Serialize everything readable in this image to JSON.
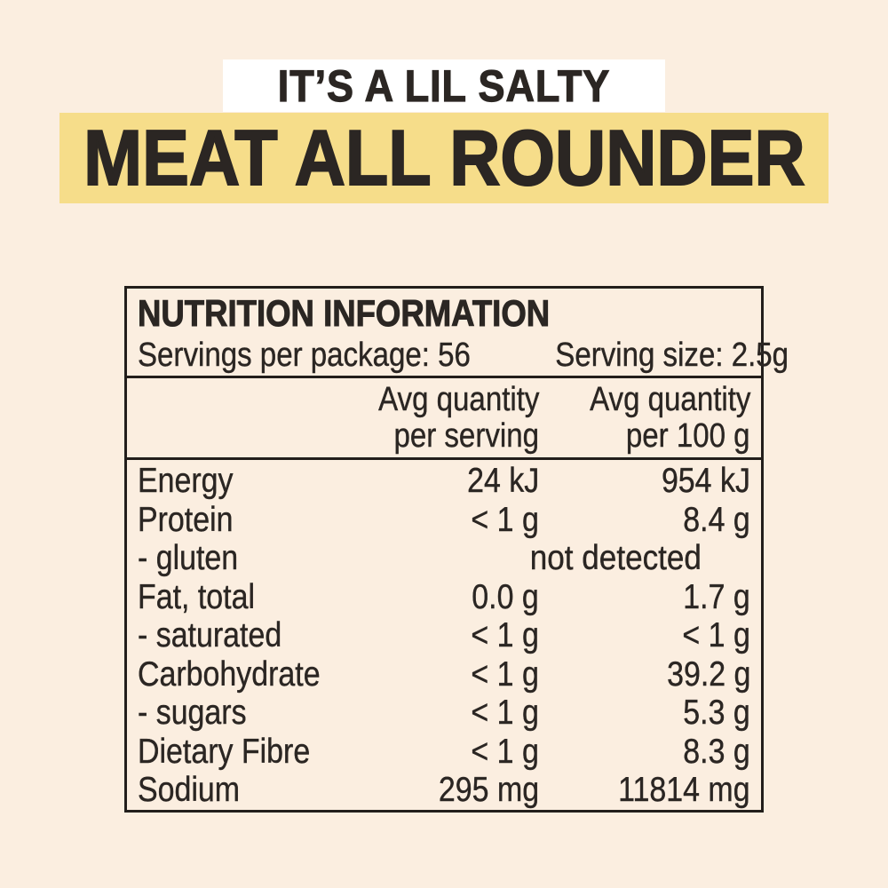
{
  "colors": {
    "background": "#fbeee0",
    "tagline_bg": "#ffffff",
    "title_bg": "#f6dd8a",
    "text": "#2b2623",
    "border": "#221e1b"
  },
  "header": {
    "tagline": "IT’S A LIL SALTY",
    "title": "MEAT ALL ROUNDER"
  },
  "table": {
    "title": "NUTRITION INFORMATION",
    "servings_per_package": "Servings per package: 56",
    "serving_size": "Serving size: 2.5g",
    "columns": {
      "per_serving": [
        "Avg quantity",
        "per serving"
      ],
      "per_100g": [
        "Avg quantity",
        "per 100 g"
      ]
    },
    "rows": [
      {
        "label": "Energy",
        "per_serving": "24 kJ",
        "per_100g": "954 kJ"
      },
      {
        "label": "Protein",
        "per_serving": "< 1 g",
        "per_100g": "8.4 g"
      },
      {
        "label": "- gluten",
        "span_value": "not detected"
      },
      {
        "label": "Fat, total",
        "per_serving": "0.0 g",
        "per_100g": "1.7 g"
      },
      {
        "label": "- saturated",
        "per_serving": "< 1 g",
        "per_100g": "< 1 g"
      },
      {
        "label": "Carbohydrate",
        "per_serving": "< 1 g",
        "per_100g": "39.2 g"
      },
      {
        "label": "- sugars",
        "per_serving": "< 1 g",
        "per_100g": "5.3 g"
      },
      {
        "label": "Dietary Fibre",
        "per_serving": "< 1 g",
        "per_100g": "8.3 g"
      },
      {
        "label": "Sodium",
        "per_serving": "295 mg",
        "per_100g": "11814 mg"
      }
    ]
  }
}
